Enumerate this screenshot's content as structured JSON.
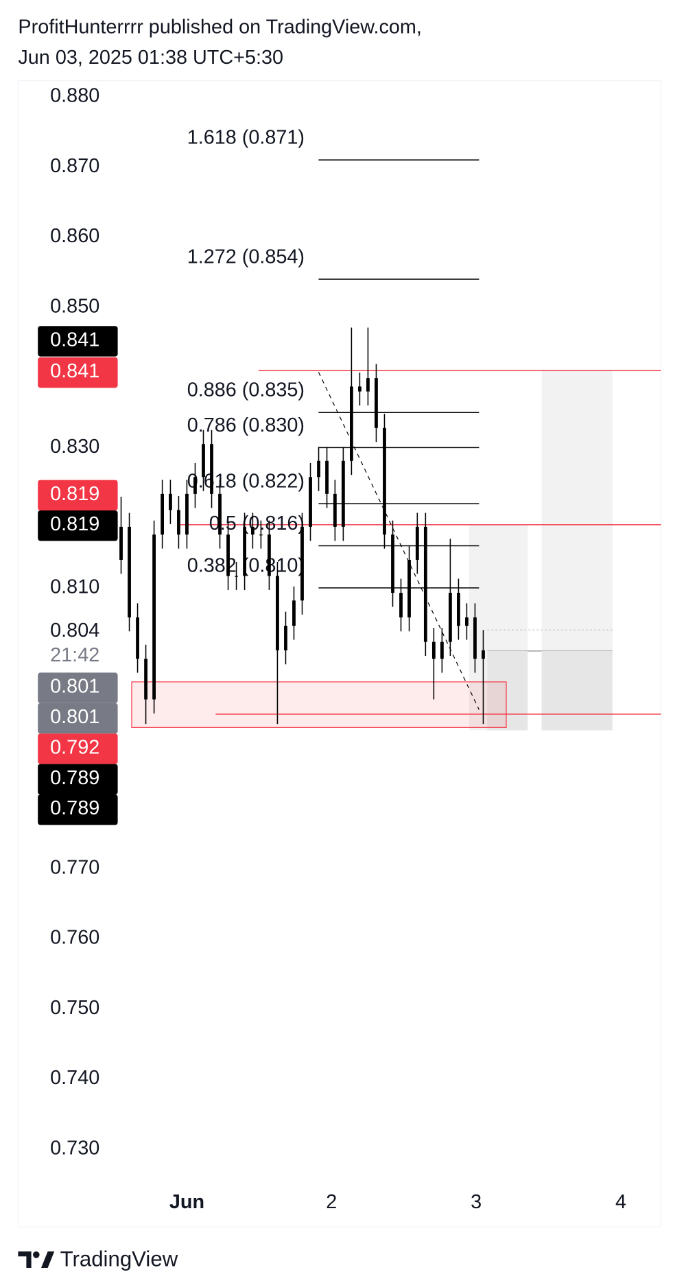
{
  "header": {
    "author_line": "ProfitHunterrrr published on TradingView.com,",
    "date_line": "Jun 03, 2025 01:38 UTC+5:30"
  },
  "footer": "TradingView",
  "chart_data": {
    "type": "candlestick",
    "color": "#000000",
    "xlim": [
      -0.167,
      4.278
    ],
    "ylim": [
      0.7248,
      0.8823
    ],
    "xticks": [
      {
        "value": 1,
        "label": "Jun"
      },
      2,
      3,
      4
    ],
    "yticks": [
      {
        "value": 0.88,
        "label": "0.880"
      },
      {
        "value": 0.87,
        "label": "0.870"
      },
      {
        "value": 0.86,
        "label": "0.860"
      },
      {
        "value": 0.85,
        "label": "0.850"
      },
      {
        "value": 0.83,
        "label": "0.830"
      },
      {
        "value": 0.81,
        "label": "0.810"
      },
      {
        "value": 0.77,
        "label": "0.770"
      },
      {
        "value": 0.76,
        "label": "0.760"
      },
      {
        "value": 0.75,
        "label": "0.750"
      },
      {
        "value": 0.74,
        "label": "0.740"
      },
      {
        "value": 0.73,
        "label": "0.730"
      }
    ],
    "x": [
      0.545,
      0.602,
      0.659,
      0.716,
      0.773,
      0.83,
      0.886,
      0.943,
      1.0,
      1.057,
      1.114,
      1.171,
      1.228,
      1.285,
      1.342,
      1.399,
      1.455,
      1.512,
      1.569,
      1.626,
      1.683,
      1.74,
      1.797,
      1.854,
      1.911,
      1.968,
      2.024,
      2.081,
      2.138,
      2.195,
      2.252,
      2.309,
      2.366,
      2.423,
      2.48,
      2.537,
      2.593,
      2.65,
      2.707,
      2.764,
      2.821,
      2.878,
      2.935,
      2.992,
      3.049
    ],
    "open": [
      0.814,
      0.8187,
      0.8058,
      0.7999,
      0.7941,
      0.8176,
      0.8234,
      0.8211,
      0.8176,
      0.8234,
      0.8258,
      0.8305,
      0.8234,
      0.8176,
      0.8117,
      0.8117,
      0.8187,
      0.8176,
      0.8176,
      0.8117,
      0.8011,
      0.8046,
      0.8082,
      0.8187,
      0.8258,
      0.8281,
      0.8234,
      0.8187,
      0.8281,
      0.8387,
      0.838,
      0.8399,
      0.8328,
      0.8176,
      0.8093,
      0.8058,
      0.814,
      0.8187,
      0.8023,
      0.7999,
      0.8023,
      0.8093,
      0.8046,
      0.8058,
      0.7999
    ],
    "high": [
      0.823,
      0.8207,
      0.8078,
      0.8019,
      0.8196,
      0.8254,
      0.8254,
      0.8231,
      0.8254,
      0.8278,
      0.8325,
      0.8325,
      0.8254,
      0.8196,
      0.8137,
      0.8207,
      0.8207,
      0.8196,
      0.8196,
      0.8137,
      0.8066,
      0.8102,
      0.8207,
      0.8278,
      0.8301,
      0.8301,
      0.8254,
      0.8301,
      0.8471,
      0.8407,
      0.8471,
      0.8419,
      0.8348,
      0.8196,
      0.8113,
      0.816,
      0.8207,
      0.8207,
      0.8043,
      0.8043,
      0.817,
      0.8113,
      0.8078,
      0.8078,
      0.804
    ],
    "low": [
      0.812,
      0.8038,
      0.7979,
      0.7906,
      0.7921,
      0.8156,
      0.8191,
      0.8156,
      0.8156,
      0.8214,
      0.8238,
      0.8214,
      0.8156,
      0.8097,
      0.8097,
      0.8097,
      0.8156,
      0.8156,
      0.8097,
      0.7906,
      0.7991,
      0.8026,
      0.8062,
      0.8167,
      0.8238,
      0.8214,
      0.8167,
      0.8167,
      0.8261,
      0.836,
      0.836,
      0.8308,
      0.8156,
      0.8073,
      0.8038,
      0.8038,
      0.812,
      0.8003,
      0.7941,
      0.7979,
      0.8003,
      0.8026,
      0.8026,
      0.7979,
      0.7906
    ],
    "close": [
      0.8187,
      0.8058,
      0.7999,
      0.7941,
      0.8176,
      0.8234,
      0.8211,
      0.8176,
      0.8234,
      0.8258,
      0.8305,
      0.8234,
      0.8176,
      0.8117,
      0.8117,
      0.8187,
      0.8176,
      0.8176,
      0.8117,
      0.8011,
      0.8046,
      0.8082,
      0.8187,
      0.8258,
      0.8281,
      0.8234,
      0.8187,
      0.8281,
      0.8387,
      0.838,
      0.8399,
      0.8328,
      0.8176,
      0.8093,
      0.8058,
      0.814,
      0.8187,
      0.8023,
      0.7999,
      0.8023,
      0.8093,
      0.8046,
      0.8058,
      0.7999,
      0.8011
    ],
    "fib": [
      {
        "label": "1.618 (0.871)",
        "value": 0.871
      },
      {
        "label": "1.272 (0.854)",
        "value": 0.854
      },
      {
        "label": "0.886 (0.835)",
        "value": 0.835
      },
      {
        "label": "0.786 (0.830)",
        "value": 0.83
      },
      {
        "label": "0.618 (0.822)",
        "value": 0.822
      },
      {
        "label": "0.5 (0.816)",
        "value": 0.816
      },
      {
        "label": "0.382 (0.810)",
        "value": 0.81
      }
    ],
    "hlines": [
      {
        "value": 0.841,
        "color": "#f23645"
      },
      {
        "value": 0.819,
        "color": "#f23645"
      },
      {
        "value": 0.792,
        "color": "#f23645"
      }
    ],
    "zone": {
      "top": 0.7966,
      "bottom": 0.7901,
      "color": "#f23645"
    },
    "position_boxes": [
      {
        "top": 0.819,
        "bottom": 0.7897
      },
      {
        "top": 0.841,
        "bottom": 0.7897
      }
    ],
    "price_labels": [
      {
        "value": 0.841,
        "color": "#000000"
      },
      {
        "value": 0.841,
        "color": "#f23645"
      },
      {
        "value": 0.819,
        "color": "#f23645"
      },
      {
        "value": 0.819,
        "color": "#000000"
      },
      {
        "value": 0.804,
        "color": null
      },
      {
        "value": 0.801,
        "color": "#787b86"
      },
      {
        "value": 0.801,
        "color": "#787b86"
      },
      {
        "value": 0.792,
        "color": "#f23645"
      },
      {
        "value": 0.789,
        "color": "#000000"
      },
      {
        "value": 0.789,
        "color": "#000000"
      }
    ],
    "countdown": "21:42"
  }
}
